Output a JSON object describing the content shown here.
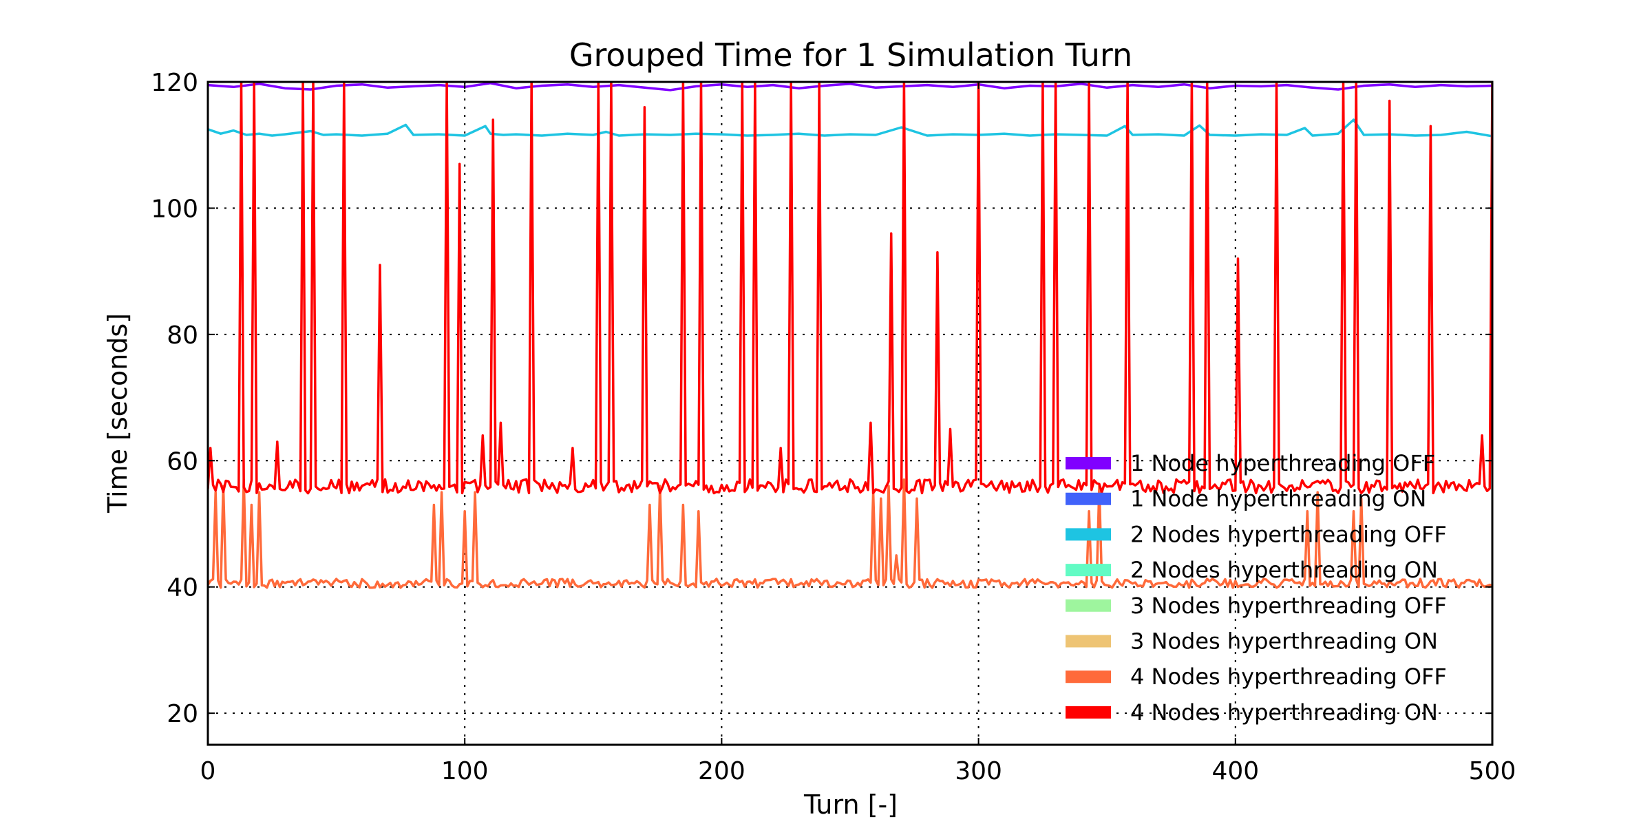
{
  "chart_data": {
    "type": "line",
    "title": "Grouped Time for 1 Simulation Turn",
    "xlabel": "Turn [-]",
    "ylabel": "Time [seconds]",
    "xlim": [
      0,
      500
    ],
    "ylim": [
      15,
      120
    ],
    "xticks": [
      0,
      100,
      200,
      300,
      400,
      500
    ],
    "yticks": [
      20,
      40,
      60,
      80,
      100,
      120
    ],
    "grid": true,
    "legend_position": "lower-right",
    "series": [
      {
        "name": "1 Node hyperthreading OFF",
        "color": "#8000ff",
        "base": 119.3,
        "x": [
          0,
          10,
          20,
          30,
          40,
          50,
          60,
          70,
          80,
          90,
          100,
          110,
          120,
          130,
          140,
          150,
          160,
          170,
          180,
          190,
          200,
          210,
          220,
          230,
          240,
          250,
          260,
          270,
          280,
          290,
          300,
          310,
          320,
          330,
          340,
          350,
          360,
          370,
          380,
          390,
          400,
          410,
          420,
          430,
          440,
          450,
          460,
          470,
          480,
          490,
          500
        ],
        "y": [
          119.5,
          119.2,
          119.7,
          119.0,
          118.8,
          119.4,
          119.6,
          119.1,
          119.3,
          119.5,
          119.2,
          119.8,
          119.0,
          119.4,
          119.6,
          119.2,
          119.5,
          119.1,
          118.7,
          119.3,
          119.6,
          119.2,
          119.5,
          119.0,
          119.4,
          119.7,
          119.1,
          119.3,
          119.5,
          119.2,
          119.6,
          119.0,
          119.4,
          119.3,
          119.7,
          119.1,
          119.5,
          119.2,
          119.6,
          119.0,
          119.4,
          119.3,
          119.5,
          119.1,
          118.8,
          119.4,
          119.6,
          119.2,
          119.5,
          119.3,
          119.4
        ]
      },
      {
        "name": "1 Node hyperthreading ON",
        "color": "#4062fa",
        "x": [],
        "y": []
      },
      {
        "name": "2 Nodes hyperthreading OFF",
        "color": "#1ec4e2",
        "base": 111.6,
        "x": [
          0,
          5,
          10,
          15,
          20,
          25,
          30,
          40,
          45,
          50,
          60,
          70,
          77,
          80,
          90,
          100,
          108,
          110,
          115,
          120,
          130,
          140,
          150,
          155,
          160,
          170,
          180,
          190,
          200,
          210,
          220,
          230,
          240,
          250,
          260,
          270,
          280,
          290,
          300,
          310,
          320,
          330,
          340,
          350,
          357,
          360,
          370,
          380,
          386,
          390,
          400,
          410,
          420,
          427,
          430,
          440,
          446,
          450,
          460,
          470,
          480,
          490,
          500
        ],
        "y": [
          112.5,
          111.8,
          112.3,
          111.6,
          111.8,
          111.5,
          111.7,
          112.2,
          111.6,
          111.7,
          111.5,
          111.8,
          113.2,
          111.6,
          111.7,
          111.5,
          113.0,
          111.8,
          111.6,
          111.7,
          111.5,
          111.8,
          111.6,
          112.1,
          111.5,
          111.7,
          111.6,
          111.8,
          111.7,
          111.5,
          111.6,
          111.8,
          111.5,
          111.7,
          111.6,
          112.8,
          111.5,
          111.7,
          111.6,
          111.8,
          111.5,
          111.7,
          111.6,
          111.5,
          113.0,
          111.6,
          111.7,
          111.5,
          113.1,
          111.6,
          111.5,
          111.7,
          111.6,
          112.7,
          111.5,
          111.8,
          114.0,
          111.6,
          111.7,
          111.5,
          111.6,
          112.1,
          111.4
        ]
      },
      {
        "name": "2 Nodes hyperthreading ON",
        "color": "#62fbc4",
        "x": [],
        "y": []
      },
      {
        "name": "3 Nodes hyperthreading OFF",
        "color": "#9ef59e",
        "x": [],
        "y": []
      },
      {
        "name": "3 Nodes hyperthreading ON",
        "color": "#eec474",
        "x": [],
        "y": []
      },
      {
        "name": "4 Nodes hyperthreading OFF",
        "color": "#ff6a3a",
        "base": 40.3,
        "spikes": [
          [
            3,
            55
          ],
          [
            6,
            56
          ],
          [
            14,
            57
          ],
          [
            17,
            53
          ],
          [
            20,
            55
          ],
          [
            88,
            53
          ],
          [
            91,
            55
          ],
          [
            100,
            52
          ],
          [
            104,
            55
          ],
          [
            172,
            53
          ],
          [
            176,
            56
          ],
          [
            185,
            53
          ],
          [
            191,
            52
          ],
          [
            259,
            55
          ],
          [
            262,
            54
          ],
          [
            265,
            56
          ],
          [
            268,
            45
          ],
          [
            271,
            57
          ],
          [
            276,
            54
          ],
          [
            343,
            52
          ],
          [
            347,
            56
          ],
          [
            428,
            52
          ],
          [
            432,
            55
          ],
          [
            446,
            52
          ],
          [
            449,
            54
          ]
        ]
      },
      {
        "name": "4 Nodes hyperthreading ON",
        "color": "#ff0000",
        "base": 55.5,
        "spikes": [
          [
            1,
            62
          ],
          [
            13,
            120
          ],
          [
            18,
            120
          ],
          [
            27,
            63
          ],
          [
            37,
            120
          ],
          [
            41,
            120
          ],
          [
            53,
            120
          ],
          [
            67,
            91
          ],
          [
            93,
            120
          ],
          [
            98,
            107
          ],
          [
            107,
            64
          ],
          [
            111,
            114
          ],
          [
            114,
            66
          ],
          [
            126,
            120
          ],
          [
            142,
            62
          ],
          [
            152,
            120
          ],
          [
            157,
            120
          ],
          [
            170,
            116
          ],
          [
            185,
            120
          ],
          [
            192,
            120
          ],
          [
            208,
            120
          ],
          [
            213,
            120
          ],
          [
            223,
            62
          ],
          [
            227,
            120
          ],
          [
            238,
            120
          ],
          [
            258,
            66
          ],
          [
            266,
            96
          ],
          [
            271,
            120
          ],
          [
            284,
            93
          ],
          [
            289,
            65
          ],
          [
            300,
            120
          ],
          [
            325,
            120
          ],
          [
            330,
            120
          ],
          [
            343,
            120
          ],
          [
            358,
            120
          ],
          [
            383,
            120
          ],
          [
            389,
            120
          ],
          [
            401,
            92
          ],
          [
            416,
            120
          ],
          [
            442,
            120
          ],
          [
            447,
            120
          ],
          [
            460,
            117
          ],
          [
            476,
            113
          ],
          [
            496,
            64
          ],
          [
            500,
            120
          ]
        ]
      }
    ]
  }
}
